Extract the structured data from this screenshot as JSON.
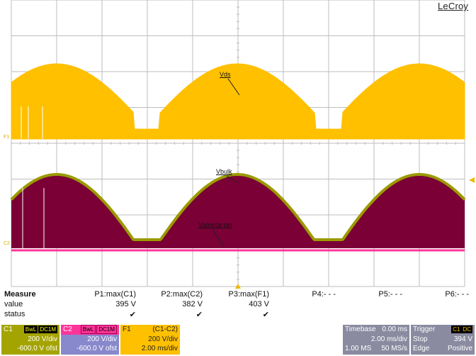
{
  "brand": {
    "logo": "LeCroy"
  },
  "traces": {
    "vds_label": "Vds",
    "vbulk_label": "Vbulk",
    "vsource_label": "Vsource pin",
    "f1_marker": "F1",
    "c2_marker": "C2"
  },
  "colors": {
    "yellow_trace": "#ffc000",
    "maroon_trace": "#7a0036",
    "olive_trace": "#9a9a00",
    "pink_trace": "#ff3399",
    "grid": "#bdbdbd"
  },
  "measure": {
    "title": "Measure",
    "value_label": "value",
    "status_label": "status",
    "params": [
      {
        "name": "P1:max(C1)",
        "value": "395 V",
        "status": "✔"
      },
      {
        "name": "P2:max(C2)",
        "value": "382 V",
        "status": "✔"
      },
      {
        "name": "P3:max(F1)",
        "value": "403 V",
        "status": "✔"
      },
      {
        "name": "P4:- - -",
        "value": "",
        "status": ""
      },
      {
        "name": "P5:- - -",
        "value": "",
        "status": ""
      },
      {
        "name": "P6:- - -",
        "value": "",
        "status": ""
      }
    ]
  },
  "channels": {
    "c1": {
      "name": "C1",
      "bwl": "BwL",
      "coupling": "DC1M",
      "vdiv": "200 V/div",
      "offset": "-600.0 V ofst",
      "color": "#a4a400"
    },
    "c2": {
      "name": "C2",
      "bwl": "BwL",
      "coupling": "DC1M",
      "vdiv": "200 V/div",
      "offset": "-600.0 V ofst",
      "color": "#8888cc"
    },
    "f1": {
      "name": "F1",
      "formula": "(C1-C2)",
      "vdiv": "200 V/div",
      "tdiv": "2.00 ms/div",
      "color": "#ffc000"
    }
  },
  "timebase": {
    "title": "Timebase",
    "delay": "0.00 ms",
    "tdiv": "2.00 ms/div",
    "samples": "1.00 MS",
    "rate": "50 MS/s"
  },
  "trigger": {
    "title": "Trigger",
    "source": "C1",
    "coupling": "DC",
    "mode": "Stop",
    "level": "394 V",
    "type": "Edge",
    "slope": "Positive"
  }
}
